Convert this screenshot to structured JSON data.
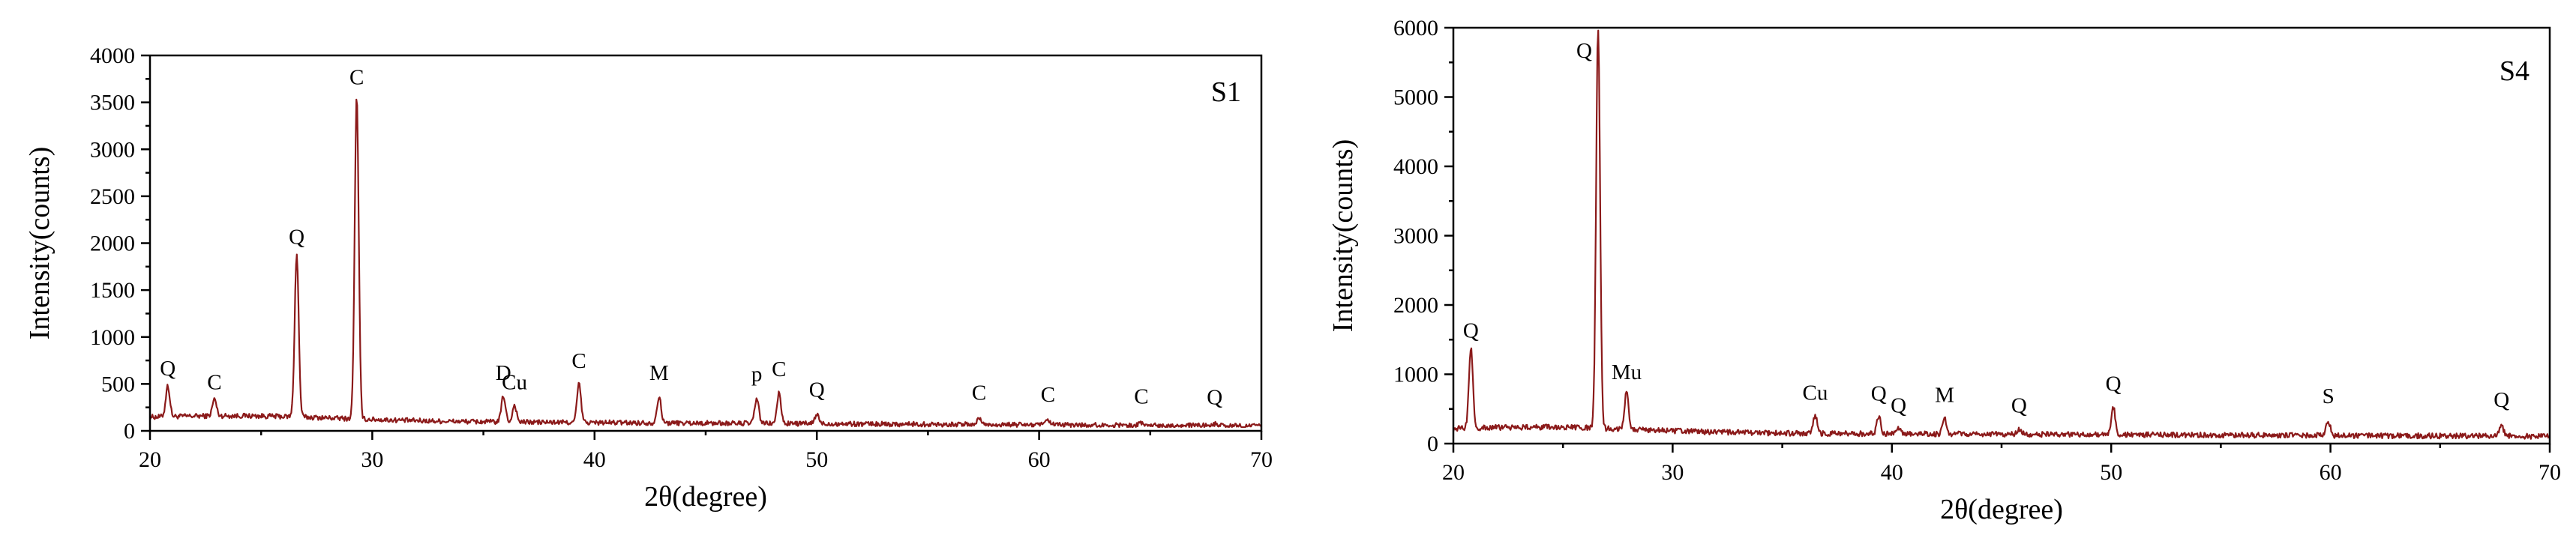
{
  "chart_data": [
    {
      "type": "line",
      "sample_label": "S1",
      "xlabel": "2θ(degree)",
      "ylabel": "Intensity(counts)",
      "xlim": [
        20,
        70
      ],
      "ylim": [
        0,
        4000
      ],
      "x_ticks": [
        20,
        30,
        40,
        50,
        60,
        70
      ],
      "y_ticks": [
        0,
        500,
        1000,
        1500,
        2000,
        2500,
        3000,
        3500,
        4000
      ],
      "baseline": 150,
      "peaks": [
        {
          "x": 20.8,
          "y": 480,
          "label": "Q"
        },
        {
          "x": 22.9,
          "y": 330,
          "label": "C"
        },
        {
          "x": 26.6,
          "y": 1880,
          "label": "Q"
        },
        {
          "x": 29.3,
          "y": 3580,
          "label": "C"
        },
        {
          "x": 35.9,
          "y": 430,
          "label": "D"
        },
        {
          "x": 36.4,
          "y": 330,
          "label": "Cu"
        },
        {
          "x": 39.3,
          "y": 560,
          "label": "C"
        },
        {
          "x": 42.9,
          "y": 430,
          "label": "M"
        },
        {
          "x": 47.3,
          "y": 420,
          "label": "p"
        },
        {
          "x": 48.3,
          "y": 470,
          "label": "C"
        },
        {
          "x": 50.0,
          "y": 250,
          "label": "Q"
        },
        {
          "x": 57.3,
          "y": 220,
          "label": "C"
        },
        {
          "x": 60.4,
          "y": 200,
          "label": "C"
        },
        {
          "x": 64.6,
          "y": 180,
          "label": "C"
        },
        {
          "x": 67.9,
          "y": 170,
          "label": "Q"
        }
      ]
    },
    {
      "type": "line",
      "sample_label": "S4",
      "xlabel": "2θ(degree)",
      "ylabel": "Intensity(counts)",
      "xlim": [
        20,
        70
      ],
      "ylim": [
        0,
        6000
      ],
      "x_ticks": [
        20,
        30,
        40,
        50,
        60,
        70
      ],
      "y_ticks": [
        0,
        1000,
        2000,
        3000,
        4000,
        5000,
        6000
      ],
      "baseline": 220,
      "peaks": [
        {
          "x": 20.8,
          "y": 1380,
          "label": "Q"
        },
        {
          "x": 26.6,
          "y": 6000,
          "label": "Q"
        },
        {
          "x": 27.9,
          "y": 780,
          "label": "Mu"
        },
        {
          "x": 36.5,
          "y": 480,
          "label": "Cu"
        },
        {
          "x": 39.4,
          "y": 470,
          "label": "Q"
        },
        {
          "x": 40.3,
          "y": 300,
          "label": "Q"
        },
        {
          "x": 42.4,
          "y": 450,
          "label": "M"
        },
        {
          "x": 45.8,
          "y": 300,
          "label": "Q"
        },
        {
          "x": 50.1,
          "y": 610,
          "label": "Q"
        },
        {
          "x": 59.9,
          "y": 430,
          "label": "S"
        },
        {
          "x": 67.8,
          "y": 380,
          "label": "Q"
        }
      ]
    }
  ]
}
